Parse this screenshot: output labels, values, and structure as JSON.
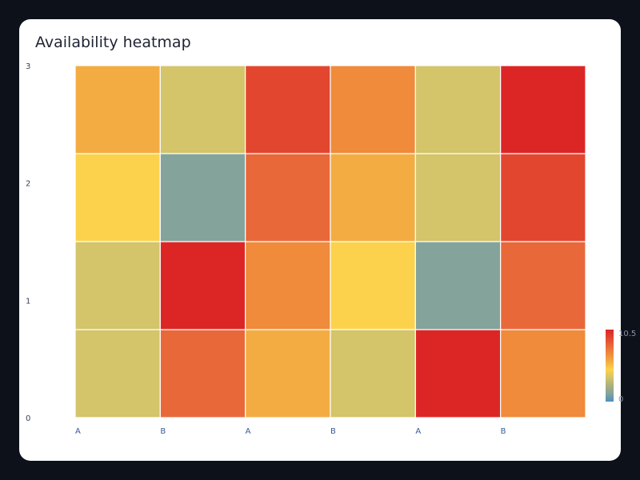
{
  "chart_data": {
    "type": "heatmap",
    "title": "Availability heatmap",
    "x_tick_labels": [
      "A",
      "B",
      "A",
      "B",
      "A",
      "B"
    ],
    "y_tick_labels": [
      "0",
      "1",
      "2",
      "3"
    ],
    "rows_bottom_to_top": [
      [
        3,
        8,
        6,
        4,
        10,
        7
      ],
      [
        4,
        10,
        7,
        5,
        1,
        8
      ],
      [
        5,
        1,
        8,
        6,
        3,
        9
      ],
      [
        6,
        3,
        9,
        7,
        4,
        10
      ]
    ],
    "colorbar": {
      "min_label": "0",
      "max_label": "10.5",
      "min": 0,
      "max": 10.5
    },
    "colorscale": [
      "#4a8fc4",
      "#84a39b",
      "#a9b17e",
      "#d4c46a",
      "#fcd24c",
      "#f3ac42",
      "#ef8b3a",
      "#e8683a",
      "#e2462f",
      "#dc2626"
    ],
    "grid": false
  }
}
